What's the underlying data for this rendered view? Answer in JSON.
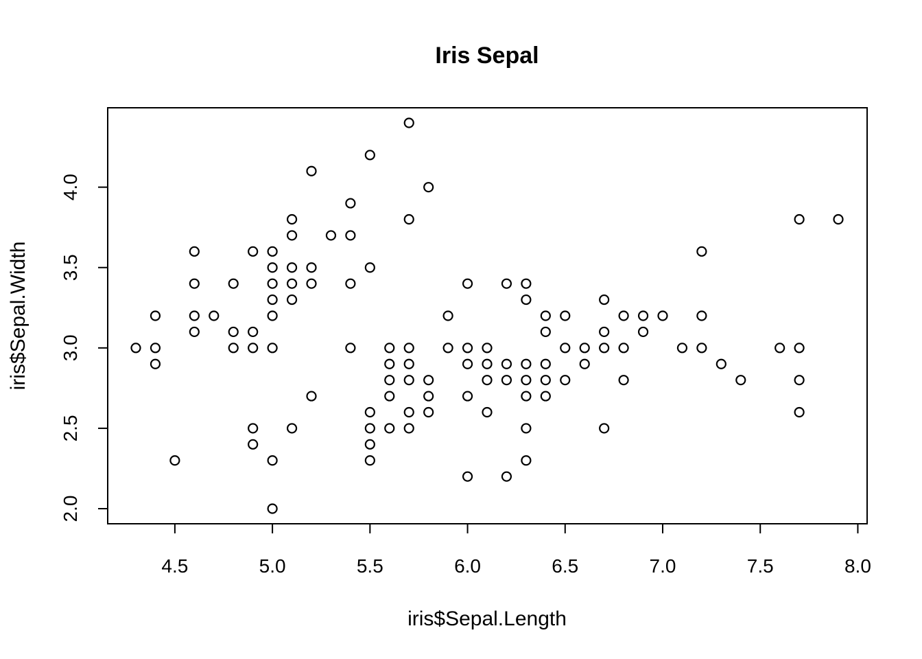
{
  "chart_data": {
    "type": "scatter",
    "title": "Iris Sepal",
    "xlabel": "iris$Sepal.Length",
    "ylabel": "iris$Sepal.Width",
    "xlim": [
      4.3,
      7.9
    ],
    "ylim": [
      2.0,
      4.4
    ],
    "x_ticks": [
      4.5,
      5.0,
      5.5,
      6.0,
      6.5,
      7.0,
      7.5,
      8.0
    ],
    "x_tick_labels": [
      "4.5",
      "5.0",
      "5.5",
      "6.0",
      "6.5",
      "7.0",
      "7.5",
      "8.0"
    ],
    "y_ticks": [
      2.0,
      2.5,
      3.0,
      3.5,
      4.0
    ],
    "y_tick_labels": [
      "2.0",
      "2.5",
      "3.0",
      "3.5",
      "4.0"
    ],
    "grid": false,
    "marker": "open-circle",
    "points": [
      [
        4.3,
        3.0
      ],
      [
        4.4,
        3.2
      ],
      [
        4.4,
        3.0
      ],
      [
        4.4,
        2.9
      ],
      [
        4.5,
        2.3
      ],
      [
        4.6,
        3.6
      ],
      [
        4.6,
        3.4
      ],
      [
        4.6,
        3.2
      ],
      [
        4.6,
        3.1
      ],
      [
        4.7,
        3.2
      ],
      [
        4.8,
        3.4
      ],
      [
        4.8,
        3.1
      ],
      [
        4.8,
        3.0
      ],
      [
        4.9,
        3.6
      ],
      [
        4.9,
        3.1
      ],
      [
        4.9,
        3.0
      ],
      [
        4.9,
        2.5
      ],
      [
        4.9,
        2.4
      ],
      [
        5.0,
        3.6
      ],
      [
        5.0,
        3.5
      ],
      [
        5.0,
        3.4
      ],
      [
        5.0,
        3.3
      ],
      [
        5.0,
        3.2
      ],
      [
        5.0,
        3.0
      ],
      [
        5.0,
        2.3
      ],
      [
        5.0,
        2.0
      ],
      [
        5.1,
        3.8
      ],
      [
        5.1,
        3.7
      ],
      [
        5.1,
        3.5
      ],
      [
        5.1,
        3.4
      ],
      [
        5.1,
        3.3
      ],
      [
        5.1,
        2.5
      ],
      [
        5.2,
        4.1
      ],
      [
        5.2,
        3.5
      ],
      [
        5.2,
        3.4
      ],
      [
        5.2,
        2.7
      ],
      [
        5.3,
        3.7
      ],
      [
        5.4,
        3.9
      ],
      [
        5.4,
        3.7
      ],
      [
        5.4,
        3.4
      ],
      [
        5.4,
        3.0
      ],
      [
        5.5,
        4.2
      ],
      [
        5.5,
        3.5
      ],
      [
        5.5,
        2.6
      ],
      [
        5.5,
        2.5
      ],
      [
        5.5,
        2.4
      ],
      [
        5.5,
        2.3
      ],
      [
        5.6,
        3.0
      ],
      [
        5.6,
        2.9
      ],
      [
        5.6,
        2.8
      ],
      [
        5.6,
        2.7
      ],
      [
        5.6,
        2.5
      ],
      [
        5.7,
        4.4
      ],
      [
        5.7,
        3.8
      ],
      [
        5.7,
        3.0
      ],
      [
        5.7,
        2.9
      ],
      [
        5.7,
        2.8
      ],
      [
        5.7,
        2.6
      ],
      [
        5.7,
        2.5
      ],
      [
        5.8,
        4.0
      ],
      [
        5.8,
        2.8
      ],
      [
        5.8,
        2.7
      ],
      [
        5.8,
        2.6
      ],
      [
        5.9,
        3.2
      ],
      [
        5.9,
        3.0
      ],
      [
        6.0,
        3.4
      ],
      [
        6.0,
        3.0
      ],
      [
        6.0,
        2.9
      ],
      [
        6.0,
        2.7
      ],
      [
        6.0,
        2.2
      ],
      [
        6.1,
        3.0
      ],
      [
        6.1,
        2.9
      ],
      [
        6.1,
        2.8
      ],
      [
        6.1,
        2.6
      ],
      [
        6.2,
        3.4
      ],
      [
        6.2,
        2.9
      ],
      [
        6.2,
        2.8
      ],
      [
        6.2,
        2.2
      ],
      [
        6.3,
        3.4
      ],
      [
        6.3,
        3.3
      ],
      [
        6.3,
        2.9
      ],
      [
        6.3,
        2.8
      ],
      [
        6.3,
        2.7
      ],
      [
        6.3,
        2.5
      ],
      [
        6.3,
        2.3
      ],
      [
        6.4,
        3.2
      ],
      [
        6.4,
        3.1
      ],
      [
        6.4,
        2.9
      ],
      [
        6.4,
        2.8
      ],
      [
        6.4,
        2.7
      ],
      [
        6.5,
        3.2
      ],
      [
        6.5,
        3.0
      ],
      [
        6.5,
        2.8
      ],
      [
        6.6,
        3.0
      ],
      [
        6.6,
        2.9
      ],
      [
        6.7,
        3.3
      ],
      [
        6.7,
        3.1
      ],
      [
        6.7,
        3.0
      ],
      [
        6.7,
        2.5
      ],
      [
        6.8,
        3.2
      ],
      [
        6.8,
        3.0
      ],
      [
        6.8,
        2.8
      ],
      [
        6.9,
        3.2
      ],
      [
        6.9,
        3.1
      ],
      [
        7.0,
        3.2
      ],
      [
        7.1,
        3.0
      ],
      [
        7.2,
        3.6
      ],
      [
        7.2,
        3.2
      ],
      [
        7.2,
        3.0
      ],
      [
        7.3,
        2.9
      ],
      [
        7.4,
        2.8
      ],
      [
        7.6,
        3.0
      ],
      [
        7.7,
        3.8
      ],
      [
        7.7,
        3.0
      ],
      [
        7.7,
        2.8
      ],
      [
        7.7,
        2.6
      ],
      [
        7.9,
        3.8
      ]
    ]
  }
}
